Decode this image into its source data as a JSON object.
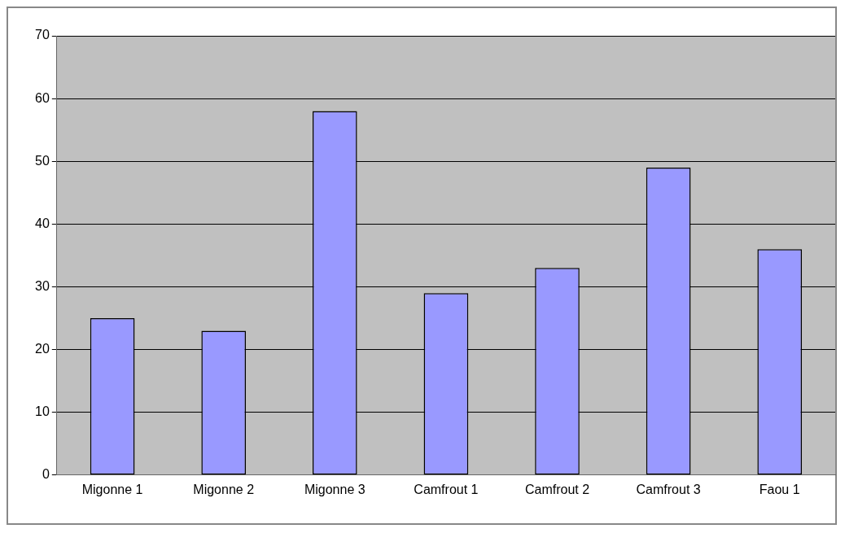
{
  "chart_data": {
    "type": "bar",
    "categories": [
      "Migonne 1",
      "Migonne 2",
      "Migonne 3",
      "Camfrout 1",
      "Camfrout 2",
      "Camfrout 3",
      "Faou 1"
    ],
    "values": [
      25,
      23,
      58,
      29,
      33,
      49,
      36
    ],
    "color": "#9999ff",
    "ylim": [
      0,
      70
    ],
    "yticks": [
      0,
      10,
      20,
      30,
      40,
      50,
      60,
      70
    ],
    "grid": "y",
    "legend": false
  }
}
